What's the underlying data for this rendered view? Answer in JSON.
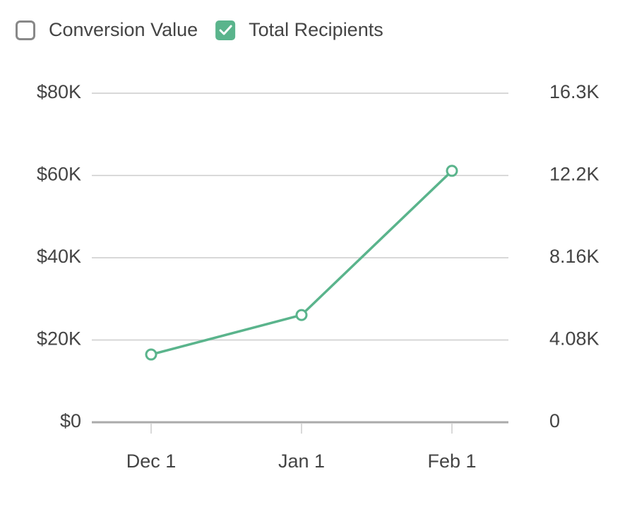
{
  "chart_data": {
    "type": "line",
    "categories": [
      "Dec 1",
      "Jan 1",
      "Feb 1"
    ],
    "series": [
      {
        "name": "Conversion Value",
        "visible": false,
        "values": [
          null,
          null,
          null
        ]
      },
      {
        "name": "Total Recipients",
        "color": "#5ab48c",
        "visible": true,
        "axis": "y2",
        "values": [
          3360,
          5320,
          12470
        ]
      }
    ],
    "ylim": [
      0,
      80000
    ],
    "yticks": [
      {
        "value": 0,
        "label": "$0"
      },
      {
        "value": 20000,
        "label": "$20K"
      },
      {
        "value": 40000,
        "label": "$40K"
      },
      {
        "value": 60000,
        "label": "$60K"
      },
      {
        "value": 80000,
        "label": "$80K"
      }
    ],
    "y2lim": [
      0,
      16320
    ],
    "y2ticks": [
      0,
      {
        "value": 4080,
        "label": "4.08K"
      },
      {
        "value": 8160,
        "label": "8.16K"
      },
      {
        "value": 12240,
        "label": "12.2K"
      },
      {
        "value": 16320,
        "label": "16.3K"
      }
    ],
    "grid": true
  }
}
